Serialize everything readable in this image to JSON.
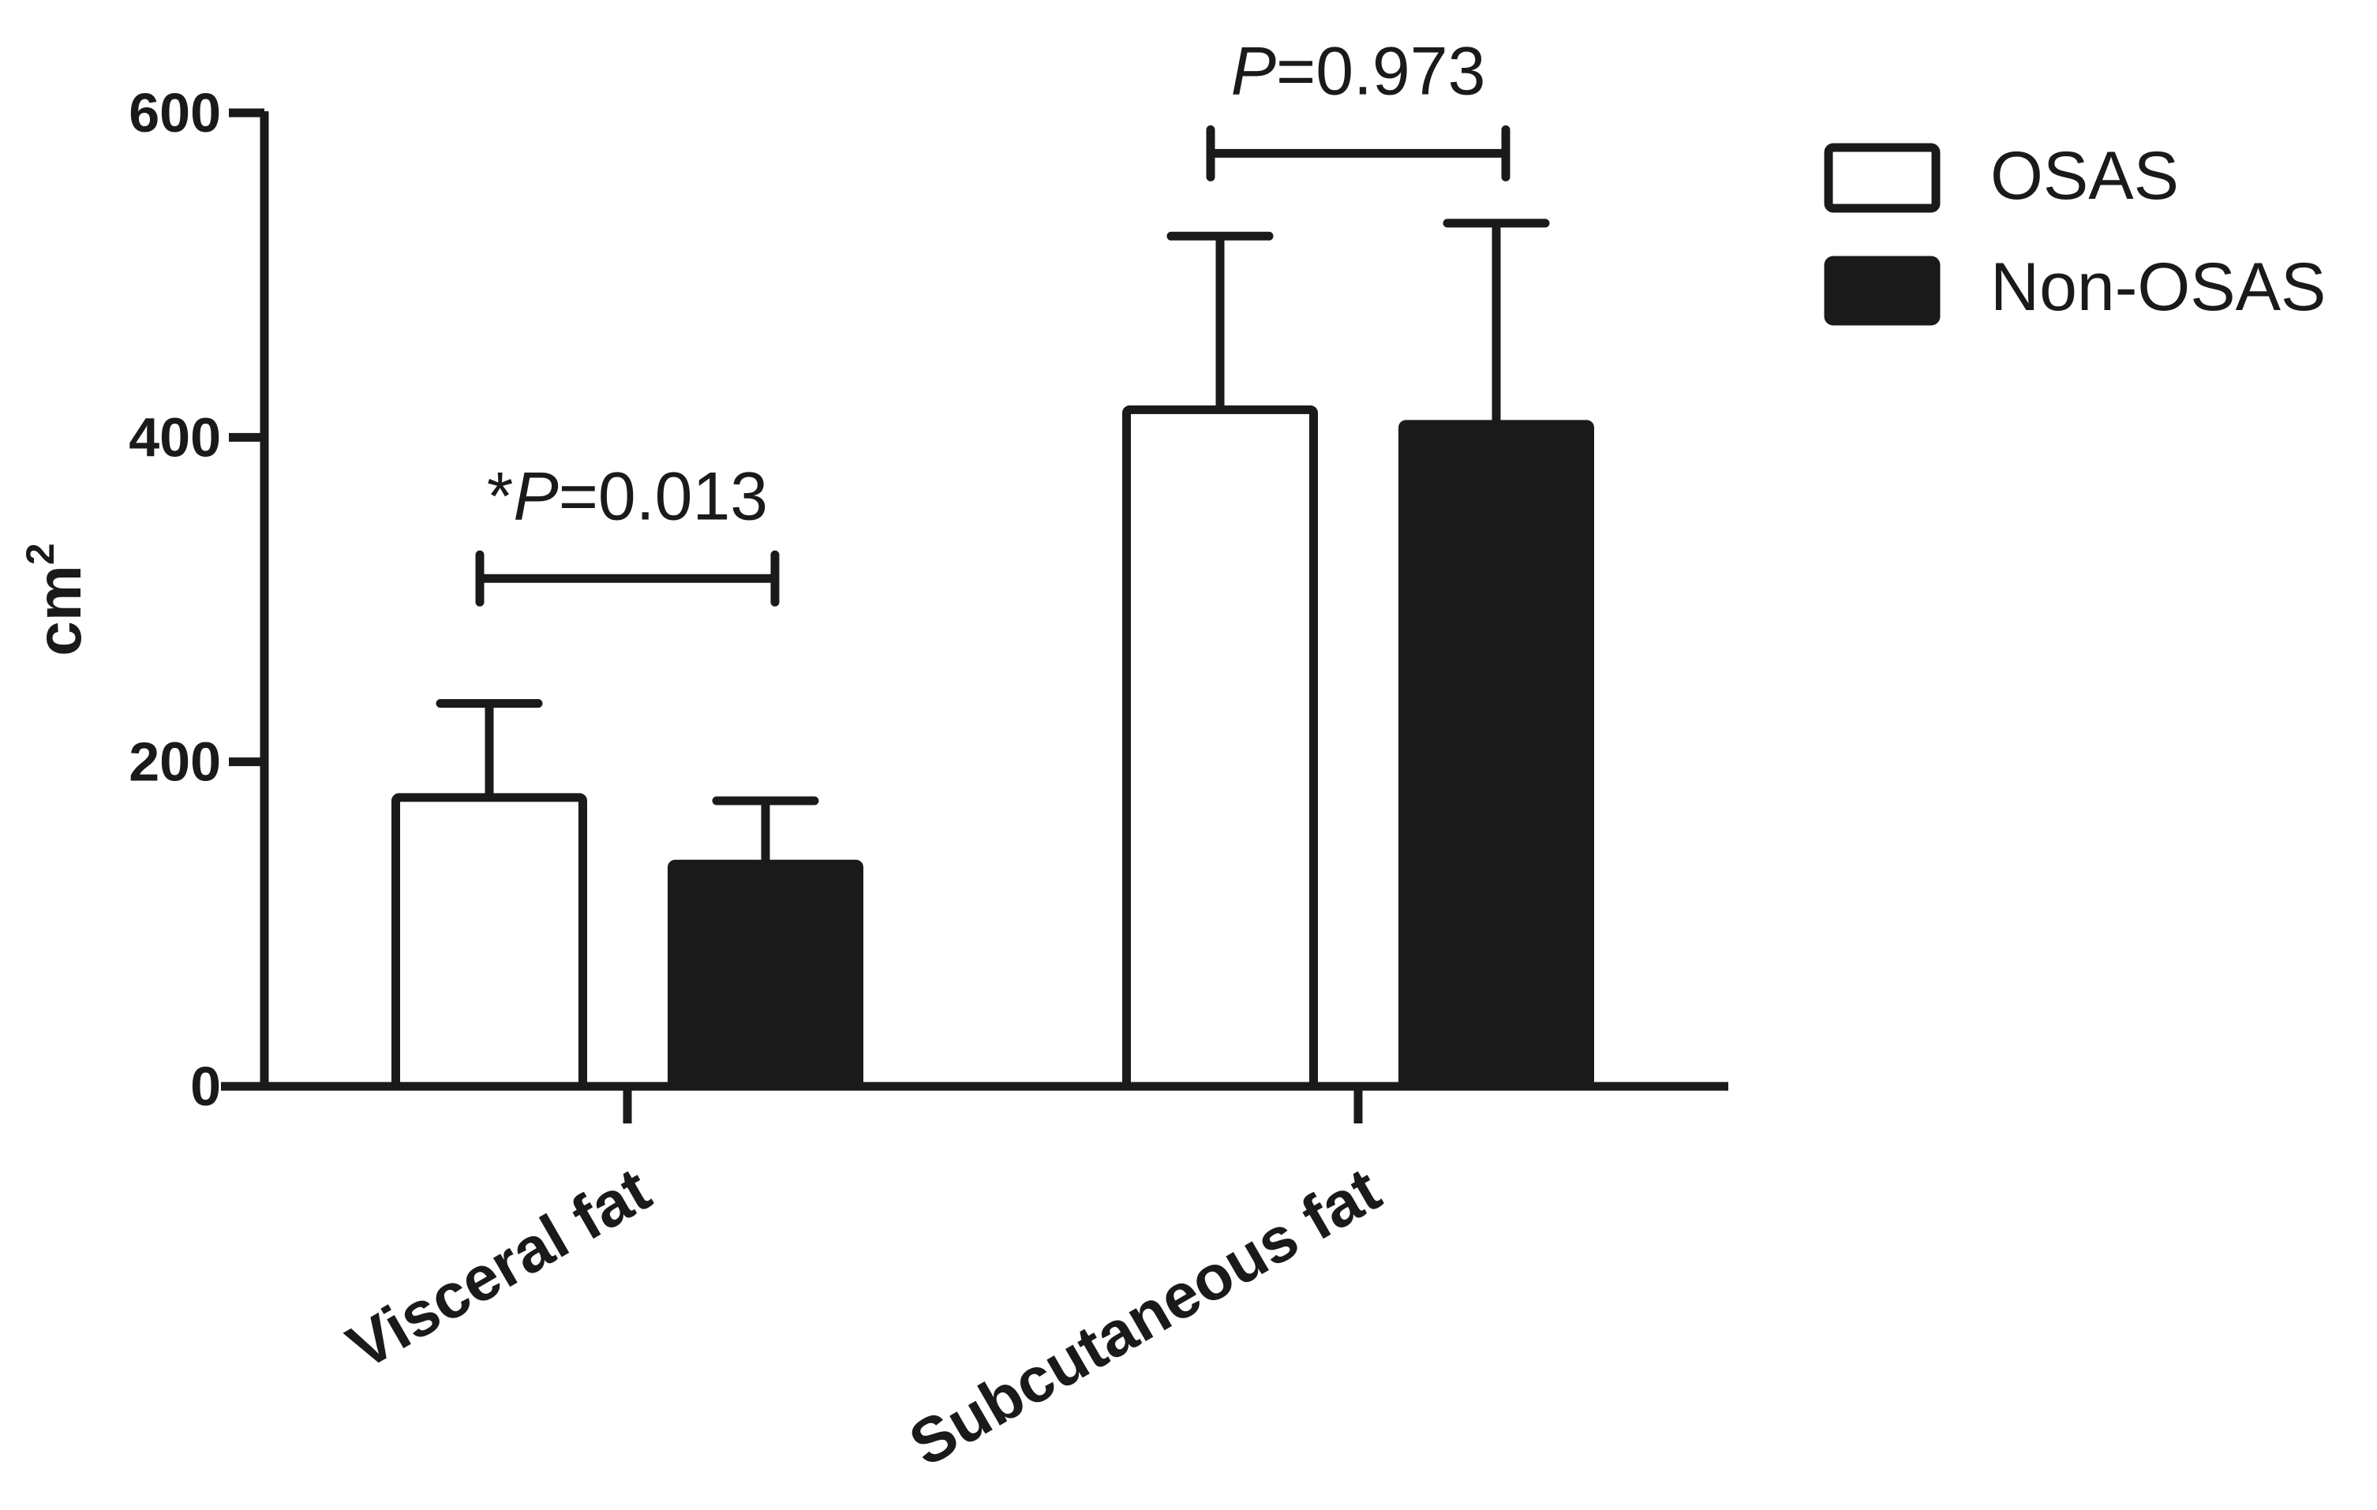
{
  "chart_data": {
    "type": "bar",
    "categories": [
      "Visceral fat",
      "Subcutaneous fat"
    ],
    "series": [
      {
        "name": "OSAS",
        "values": [
          178,
          417
        ],
        "errors": [
          58,
          107
        ],
        "color": "#ffffff"
      },
      {
        "name": "Non-OSAS",
        "values": [
          137,
          408
        ],
        "errors": [
          39,
          124
        ],
        "color": "#1a1a1a"
      }
    ],
    "ylabel": "cm",
    "ylabel_superscript": "2",
    "ylim": [
      0,
      600
    ],
    "yticks": [
      "0",
      "200",
      "400",
      "600"
    ],
    "grid": false,
    "legend_position": "top-right",
    "annotations": [
      {
        "category": "Visceral fat",
        "prefix": "*",
        "p_label": "P",
        "text": "=0.013",
        "bracket_value": 313
      },
      {
        "category": "Subcutaneous fat",
        "prefix": "",
        "p_label": "P",
        "text": "=0.973",
        "bracket_value": 575
      }
    ]
  },
  "colors": {
    "ink": "#1a1a1a",
    "background": "#ffffff"
  }
}
